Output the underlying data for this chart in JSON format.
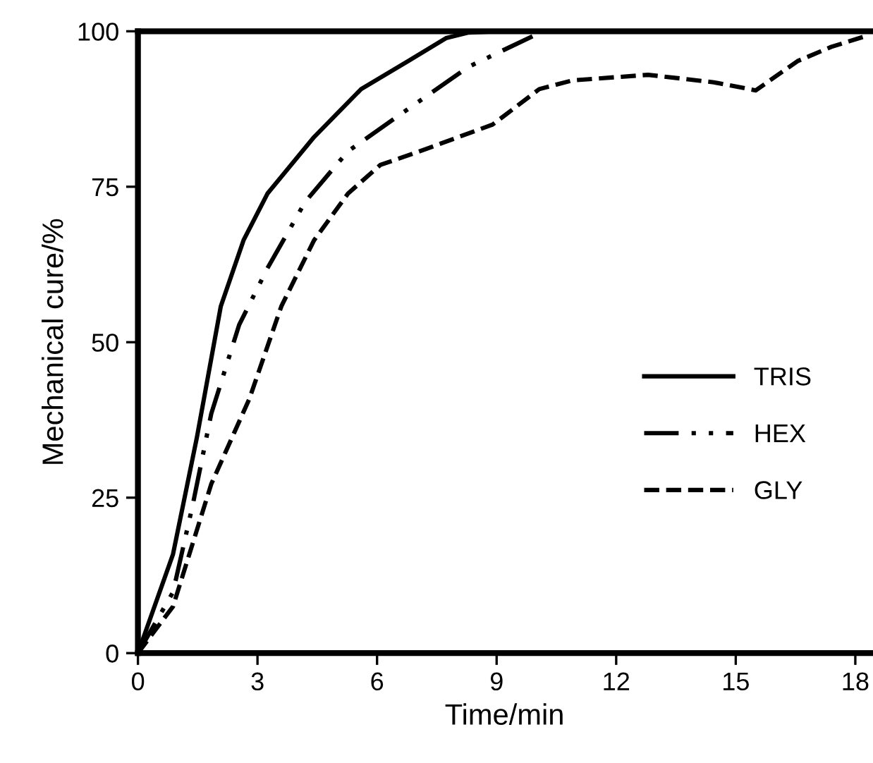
{
  "chart_data": {
    "type": "line",
    "xlabel": "Time/min",
    "ylabel": "Mechanical cure/%",
    "xlim": [
      0,
      18.4
    ],
    "ylim": [
      0,
      100
    ],
    "xticks": [
      0,
      3,
      6,
      9,
      12,
      15,
      18
    ],
    "yticks": [
      0,
      25,
      50,
      75,
      100
    ],
    "grid": false,
    "legend": "right",
    "marker": "none",
    "series": [
      {
        "name": "TRIS",
        "color": "#000000",
        "line_style": "solid",
        "x": [
          0,
          0.88,
          1.48,
          2.08,
          2.65,
          3.25,
          4.42,
          5.6,
          6.78,
          7.73,
          8.3,
          9,
          18.4
        ],
        "values": [
          0,
          15.9,
          34.7,
          55.8,
          66.4,
          73.9,
          83,
          90.7,
          95.2,
          98.9,
          99.8,
          100,
          100
        ]
      },
      {
        "name": "HEX",
        "color": "#000000",
        "line_style": "dashdotdot",
        "x": [
          0,
          0.88,
          1.38,
          1.84,
          2.54,
          3.25,
          4.2,
          5.27,
          6.78,
          8.3,
          9.9
        ],
        "values": [
          0,
          9.8,
          24,
          38.5,
          52.8,
          61.9,
          72.6,
          80.7,
          87.5,
          94.3,
          99.2
        ]
      },
      {
        "name": "GLY",
        "color": "#000000",
        "line_style": "dashed",
        "x": [
          0,
          0.88,
          1.84,
          2.79,
          3.6,
          4.42,
          5.27,
          6.08,
          7.2,
          8.9,
          10.07,
          10.9,
          12.8,
          14.45,
          15.5,
          16.55,
          17.4,
          18.3
        ],
        "values": [
          0,
          7.5,
          27.2,
          40.8,
          55.8,
          66.4,
          73.9,
          78.5,
          81,
          85,
          90.7,
          92.1,
          93,
          91.8,
          90.5,
          95.2,
          97.5,
          99.3
        ]
      }
    ]
  }
}
